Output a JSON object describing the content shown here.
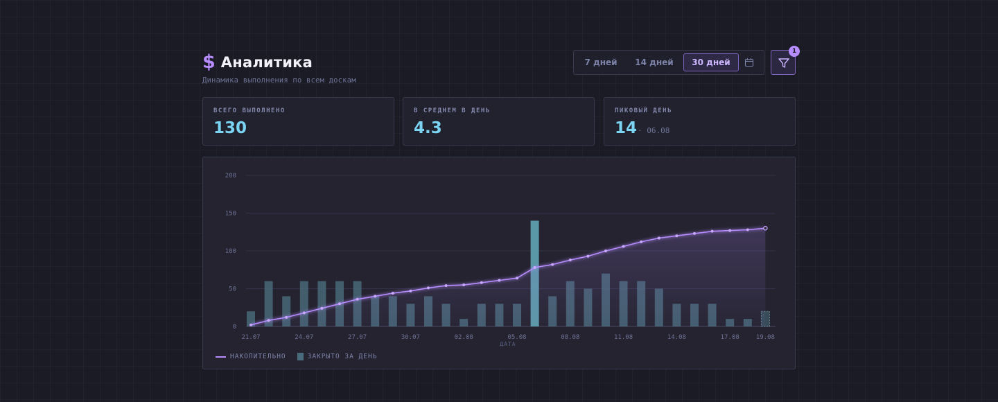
{
  "header": {
    "icon": "dollar-icon",
    "icon_glyph": "$",
    "title": "Аналитика",
    "subtitle": "Динамика выполнения по всем доскам"
  },
  "range_selector": {
    "options": [
      "7 дней",
      "14 дней",
      "30 дней"
    ],
    "active_index": 2,
    "calendar_icon": "calendar-icon"
  },
  "filter": {
    "icon": "filter-icon",
    "badge_count": "1"
  },
  "stats": [
    {
      "label": "ВСЕГО ВЫПОЛНЕНО",
      "value": "130",
      "sub": ""
    },
    {
      "label": "В СРЕДНЕМ В ДЕНЬ",
      "value": "4.3",
      "sub": ""
    },
    {
      "label": "ПИКОВЫЙ ДЕНЬ",
      "value": "14",
      "sub": "· 06.08"
    }
  ],
  "colors": {
    "accent": "#b68cff",
    "value": "#7ad4f2",
    "bar": "#4a6b7c",
    "bar_peak": "#5e9fae"
  },
  "chart_data": {
    "type": "bar",
    "xlabel": "ДАТА",
    "ylabel": "",
    "ylim": [
      0,
      200
    ],
    "y_ticks": [
      0,
      50,
      100,
      150,
      200
    ],
    "grid": true,
    "legend_position": "bottom-left",
    "dates": [
      "21.07",
      "22.07",
      "23.07",
      "24.07",
      "25.07",
      "26.07",
      "27.07",
      "28.07",
      "29.07",
      "30.07",
      "31.07",
      "01.08",
      "02.08",
      "03.08",
      "04.08",
      "05.08",
      "06.08",
      "07.08",
      "08.08",
      "09.08",
      "10.08",
      "11.08",
      "12.08",
      "13.08",
      "14.08",
      "15.08",
      "16.08",
      "17.08",
      "18.08",
      "19.08"
    ],
    "x_tick_labels": [
      "21.07",
      "24.07",
      "27.07",
      "30.07",
      "02.08",
      "05.08",
      "08.08",
      "11.08",
      "14.08",
      "17.08",
      "19.08"
    ],
    "series": [
      {
        "name": "НАКОПИТЕЛЬНО",
        "kind": "line",
        "values": [
          2,
          8,
          12,
          18,
          24,
          30,
          36,
          40,
          44,
          47,
          51,
          54,
          55,
          58,
          61,
          64,
          78,
          82,
          88,
          93,
          100,
          106,
          112,
          117,
          120,
          123,
          126,
          127,
          128,
          130
        ]
      },
      {
        "name": "ЗАКРЫТО ЗА ДЕНЬ",
        "kind": "bar",
        "scale_factor": 10,
        "values": [
          2,
          6,
          4,
          6,
          6,
          6,
          6,
          4,
          4,
          3,
          4,
          3,
          1,
          3,
          3,
          3,
          14,
          4,
          6,
          5,
          7,
          6,
          6,
          5,
          3,
          3,
          3,
          1,
          1,
          2
        ]
      }
    ]
  }
}
